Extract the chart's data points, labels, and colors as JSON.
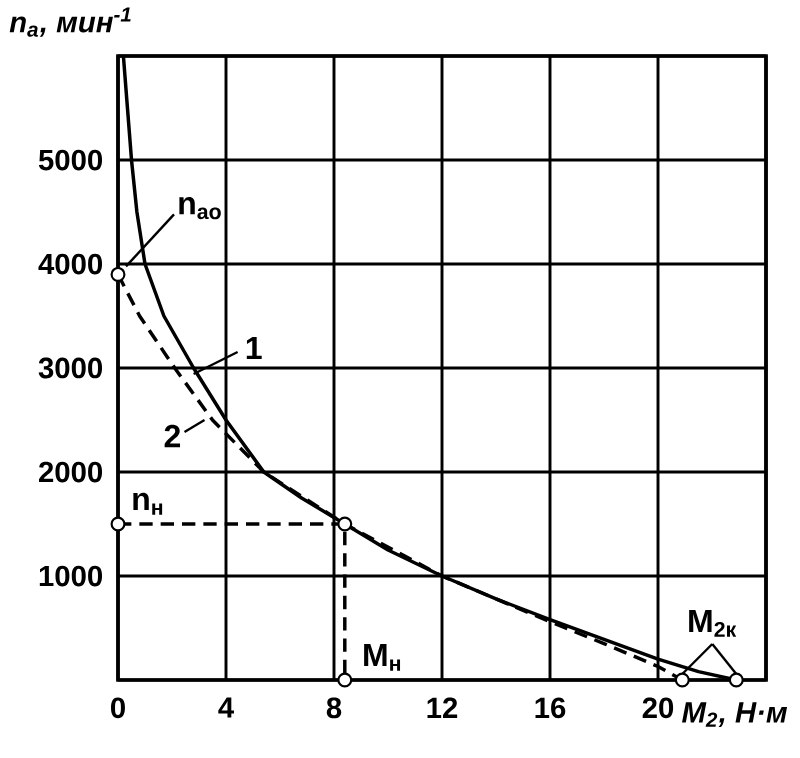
{
  "chart_data": {
    "type": "line",
    "ylabel": "n$_{a}$, мин$^{-1}$",
    "xlabel": "M$_{2}$, Н·м",
    "xlim": [
      0,
      24
    ],
    "ylim": [
      0,
      6000
    ],
    "xticks": [
      0,
      4,
      8,
      12,
      16,
      20,
      {
        "value": 24,
        "label": null
      }
    ],
    "yticks": [
      {
        "value": 0,
        "label": null
      },
      1000,
      2000,
      3000,
      4000,
      5000,
      {
        "value": 6000,
        "label": null
      }
    ],
    "grid": true,
    "series": [
      {
        "name": "1",
        "color": "#000000",
        "line_style": "solid",
        "x": [
          0.2,
          0.35,
          0.5,
          0.7,
          1.0,
          1.7,
          2.8,
          4.0,
          5.4,
          6.8,
          8.4,
          10,
          12,
          14,
          16,
          18,
          20,
          21.5,
          22.9
        ],
        "values": [
          6000,
          5500,
          5000,
          4500,
          4000,
          3500,
          3000,
          2500,
          2000,
          1750,
          1500,
          1250,
          1000,
          780,
          580,
          390,
          200,
          80,
          0
        ]
      },
      {
        "name": "2",
        "color": "#000000",
        "line_style": "dashed",
        "x": [
          0,
          0.8,
          2.1,
          3.5,
          5.4,
          8.4,
          12,
          16,
          18,
          20,
          20.9
        ],
        "values": [
          3900,
          3500,
          3000,
          2500,
          2000,
          1500,
          1000,
          560,
          350,
          130,
          0
        ]
      },
      {
        "color": "#000000",
        "line_style": "dashed",
        "x": [
          0,
          8.4,
          8.4
        ],
        "values": [
          1500,
          1500,
          0
        ]
      },
      {
        "type": "scatter",
        "marker": "circle",
        "color": "#000000",
        "x": [
          0,
          0,
          8.4,
          8.4,
          20.9,
          22.9
        ],
        "values": [
          3900,
          1500,
          1500,
          0,
          0,
          0
        ]
      }
    ],
    "annotations": [
      {
        "text": "n$_{ao}$",
        "x": 0,
        "y": 3900
      },
      {
        "text": "n$_{н}$",
        "x": 0,
        "y": 1500
      },
      {
        "text": "M$_{н}$",
        "x": 8.4,
        "y": 0
      },
      {
        "text": "M$_{2к}$",
        "x": 22.9,
        "y": 0
      }
    ]
  }
}
